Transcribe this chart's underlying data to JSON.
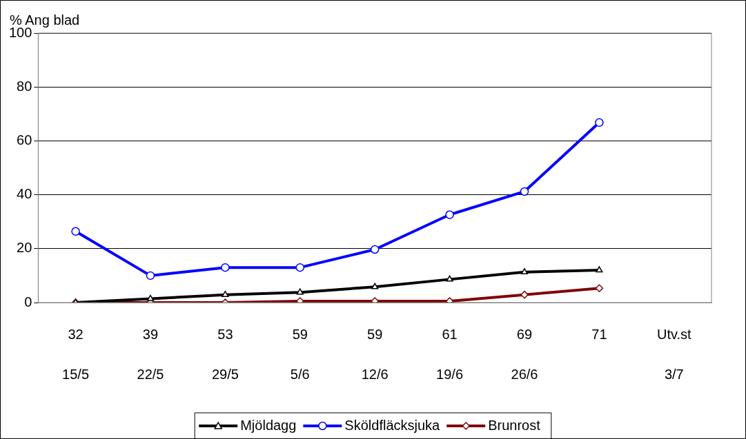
{
  "chart_data": {
    "type": "line",
    "ylabel": "% Ang blad",
    "categories": [
      "32\n15/5",
      "39\n22/5",
      "53\n29/5",
      "59\n5/6",
      "59\n12/6",
      "61\n19/6",
      "69\n26/6",
      "71\n",
      "Utv.st\n3/7"
    ],
    "series": [
      {
        "name": "Mjöldagg",
        "color": "#000000",
        "marker": "triangle",
        "values": [
          0,
          1.4,
          2.9,
          3.8,
          5.8,
          8.6,
          11.3,
          12,
          null
        ]
      },
      {
        "name": "Sköldfläcksjuka",
        "color": "#0000ff",
        "marker": "circle",
        "values": [
          26.4,
          10,
          13,
          13,
          19.7,
          32.6,
          41.2,
          66.8,
          null
        ]
      },
      {
        "name": "Brunrost",
        "color": "#800000",
        "marker": "diamond",
        "values": [
          0,
          0,
          0,
          0.5,
          0.5,
          0.5,
          2.9,
          5.3,
          null
        ]
      }
    ],
    "ylim": [
      0,
      100
    ],
    "yticks": [
      0,
      20,
      40,
      60,
      80,
      100
    ],
    "grid": "y",
    "legend": "bottom"
  }
}
